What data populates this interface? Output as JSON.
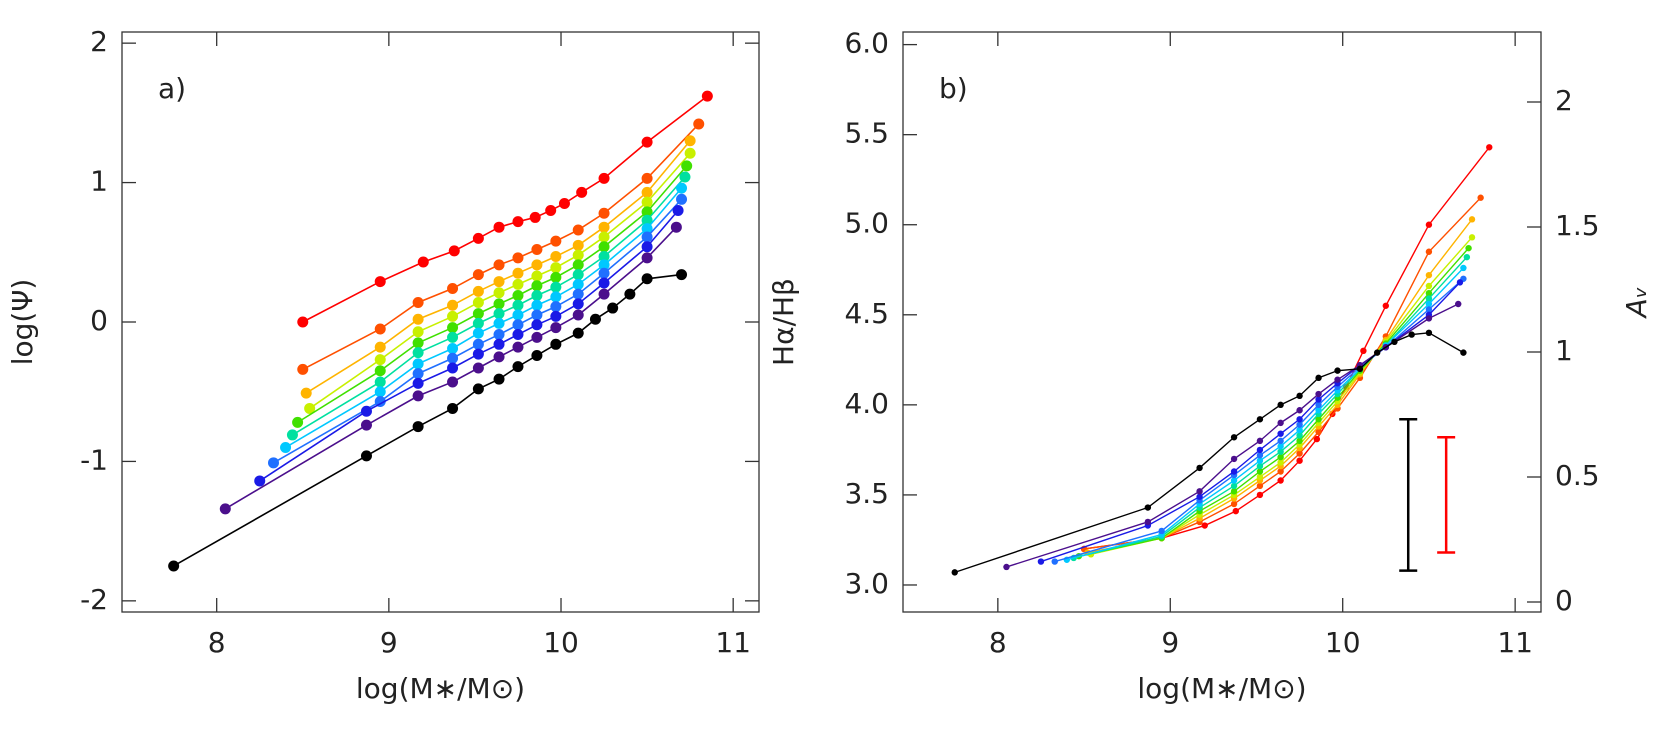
{
  "chart_data": [
    {
      "type": "line",
      "label": "a)",
      "xlabel": "log(M∗/M⊙)",
      "ylabel": "log(Ψ)",
      "xlim": [
        7.45,
        11.15
      ],
      "ylim": [
        -2.08,
        2.08
      ],
      "xticks": [
        8,
        9,
        10,
        11
      ],
      "yticks": [
        -2,
        -1,
        0,
        1,
        2
      ],
      "series": [
        {
          "color": "#ff0000",
          "x": [
            8.5,
            8.95,
            9.2,
            9.38,
            9.52,
            9.64,
            9.75,
            9.85,
            9.94,
            10.02,
            10.12,
            10.25,
            10.5,
            10.85
          ],
          "values": [
            0,
            0.29,
            0.43,
            0.51,
            0.6,
            0.68,
            0.72,
            0.75,
            0.8,
            0.85,
            0.93,
            1.03,
            1.29,
            1.62
          ]
        },
        {
          "color": "#ff5000",
          "x": [
            8.5,
            8.95,
            9.17,
            9.37,
            9.52,
            9.64,
            9.75,
            9.86,
            9.97,
            10.1,
            10.25,
            10.5,
            10.8
          ],
          "values": [
            -0.34,
            -0.05,
            0.14,
            0.24,
            0.34,
            0.41,
            0.46,
            0.52,
            0.58,
            0.66,
            0.78,
            1.03,
            1.42
          ]
        },
        {
          "color": "#ffb400",
          "x": [
            8.52,
            8.95,
            9.17,
            9.37,
            9.52,
            9.64,
            9.75,
            9.86,
            9.97,
            10.1,
            10.25,
            10.5,
            10.75
          ],
          "values": [
            -0.51,
            -0.18,
            0.02,
            0.12,
            0.22,
            0.29,
            0.35,
            0.41,
            0.47,
            0.55,
            0.68,
            0.93,
            1.3
          ]
        },
        {
          "color": "#c8f000",
          "x": [
            8.54,
            8.95,
            9.17,
            9.37,
            9.52,
            9.64,
            9.75,
            9.86,
            9.97,
            10.1,
            10.25,
            10.5,
            10.75
          ],
          "values": [
            -0.62,
            -0.27,
            -0.07,
            0.04,
            0.14,
            0.21,
            0.27,
            0.33,
            0.39,
            0.48,
            0.61,
            0.86,
            1.21
          ]
        },
        {
          "color": "#40e000",
          "x": [
            8.47,
            8.95,
            9.17,
            9.37,
            9.52,
            9.64,
            9.75,
            9.86,
            9.97,
            10.1,
            10.25,
            10.5,
            10.73
          ],
          "values": [
            -0.72,
            -0.35,
            -0.15,
            -0.04,
            0.06,
            0.13,
            0.19,
            0.26,
            0.32,
            0.41,
            0.54,
            0.79,
            1.12
          ]
        },
        {
          "color": "#00e0a0",
          "x": [
            8.44,
            8.95,
            9.17,
            9.37,
            9.52,
            9.64,
            9.75,
            9.86,
            9.97,
            10.1,
            10.25,
            10.5,
            10.72
          ],
          "values": [
            -0.81,
            -0.43,
            -0.22,
            -0.11,
            -0.01,
            0.06,
            0.12,
            0.19,
            0.25,
            0.34,
            0.47,
            0.73,
            1.04
          ]
        },
        {
          "color": "#00c8ff",
          "x": [
            8.4,
            8.95,
            9.17,
            9.37,
            9.52,
            9.64,
            9.75,
            9.86,
            9.97,
            10.1,
            10.25,
            10.5,
            10.7
          ],
          "values": [
            -0.9,
            -0.5,
            -0.3,
            -0.19,
            -0.08,
            -0.01,
            0.05,
            0.12,
            0.18,
            0.27,
            0.41,
            0.67,
            0.96
          ]
        },
        {
          "color": "#2070ff",
          "x": [
            8.33,
            8.95,
            9.17,
            9.37,
            9.52,
            9.64,
            9.75,
            9.86,
            9.97,
            10.1,
            10.25,
            10.5,
            10.7
          ],
          "values": [
            -1.01,
            -0.57,
            -0.37,
            -0.26,
            -0.16,
            -0.09,
            -0.02,
            0.05,
            0.11,
            0.2,
            0.35,
            0.61,
            0.88
          ]
        },
        {
          "color": "#1a1ae6",
          "x": [
            8.25,
            8.87,
            9.17,
            9.37,
            9.52,
            9.64,
            9.75,
            9.86,
            9.97,
            10.1,
            10.25,
            10.5,
            10.68
          ],
          "values": [
            -1.14,
            -0.64,
            -0.44,
            -0.33,
            -0.23,
            -0.16,
            -0.09,
            -0.02,
            0.04,
            0.13,
            0.28,
            0.54,
            0.8
          ]
        },
        {
          "color": "#4b0f8c",
          "x": [
            8.05,
            8.87,
            9.17,
            9.37,
            9.52,
            9.64,
            9.75,
            9.86,
            9.97,
            10.1,
            10.25,
            10.5,
            10.67
          ],
          "values": [
            -1.34,
            -0.74,
            -0.53,
            -0.43,
            -0.33,
            -0.25,
            -0.18,
            -0.11,
            -0.04,
            0.05,
            0.2,
            0.46,
            0.68
          ]
        },
        {
          "color": "#000000",
          "x": [
            7.75,
            8.87,
            9.17,
            9.37,
            9.52,
            9.64,
            9.75,
            9.86,
            9.97,
            10.1,
            10.2,
            10.3,
            10.4,
            10.5,
            10.7
          ],
          "values": [
            -1.75,
            -0.96,
            -0.75,
            -0.62,
            -0.48,
            -0.41,
            -0.32,
            -0.24,
            -0.16,
            -0.08,
            0.02,
            0.1,
            0.2,
            0.31,
            0.34
          ]
        }
      ]
    },
    {
      "type": "line",
      "label": "b)",
      "xlabel": "log(M∗/M⊙)",
      "ylabel": "Hα/Hβ",
      "y2label": "Aᵥ",
      "xlim": [
        7.45,
        11.15
      ],
      "ylim": [
        2.85,
        6.07
      ],
      "y2lim": [
        -0.04,
        2.28
      ],
      "xticks": [
        8,
        9,
        10,
        11
      ],
      "yticks": [
        {
          "value": 3,
          "label": "3.0"
        },
        3.5,
        {
          "value": 4,
          "label": "4.0"
        },
        4.5,
        {
          "value": 5,
          "label": "5.0"
        },
        5.5,
        {
          "value": 6,
          "label": "6.0"
        }
      ],
      "y2ticks": [
        0,
        0.5,
        1,
        1.5,
        2
      ],
      "series": [
        {
          "color": "#ff0000",
          "x": [
            8.5,
            8.95,
            9.2,
            9.38,
            9.52,
            9.64,
            9.75,
            9.85,
            9.94,
            10.02,
            10.12,
            10.25,
            10.5,
            10.85
          ],
          "values": [
            3.2,
            3.26,
            3.33,
            3.41,
            3.5,
            3.58,
            3.69,
            3.81,
            3.95,
            4.1,
            4.3,
            4.55,
            5.0,
            5.43
          ]
        },
        {
          "color": "#ff5000",
          "x": [
            8.5,
            8.95,
            9.17,
            9.37,
            9.52,
            9.64,
            9.75,
            9.86,
            9.97,
            10.1,
            10.25,
            10.5,
            10.8
          ],
          "values": [
            3.2,
            3.26,
            3.35,
            3.45,
            3.55,
            3.63,
            3.73,
            3.85,
            3.98,
            4.15,
            4.38,
            4.85,
            5.15
          ]
        },
        {
          "color": "#ffb400",
          "x": [
            8.52,
            8.95,
            9.17,
            9.37,
            9.52,
            9.64,
            9.75,
            9.86,
            9.97,
            10.1,
            10.25,
            10.5,
            10.75
          ],
          "values": [
            3.18,
            3.26,
            3.37,
            3.48,
            3.58,
            3.66,
            3.76,
            3.88,
            4.0,
            4.17,
            4.36,
            4.72,
            5.03
          ]
        },
        {
          "color": "#c8f000",
          "x": [
            8.54,
            8.95,
            9.17,
            9.37,
            9.52,
            9.64,
            9.75,
            9.86,
            9.97,
            10.1,
            10.25,
            10.5,
            10.75
          ],
          "values": [
            3.17,
            3.26,
            3.39,
            3.5,
            3.6,
            3.68,
            3.78,
            3.9,
            4.02,
            4.18,
            4.35,
            4.66,
            4.93
          ]
        },
        {
          "color": "#40e000",
          "x": [
            8.47,
            8.95,
            9.17,
            9.37,
            9.52,
            9.64,
            9.75,
            9.86,
            9.97,
            10.1,
            10.25,
            10.5,
            10.73
          ],
          "values": [
            3.16,
            3.26,
            3.41,
            3.52,
            3.63,
            3.71,
            3.8,
            3.92,
            4.04,
            4.19,
            4.34,
            4.62,
            4.87
          ]
        },
        {
          "color": "#00e0a0",
          "x": [
            8.44,
            8.95,
            9.17,
            9.37,
            9.52,
            9.64,
            9.75,
            9.86,
            9.97,
            10.1,
            10.25,
            10.5,
            10.72
          ],
          "values": [
            3.15,
            3.27,
            3.43,
            3.55,
            3.66,
            3.74,
            3.83,
            3.95,
            4.06,
            4.2,
            4.33,
            4.59,
            4.82
          ]
        },
        {
          "color": "#00c8ff",
          "x": [
            8.4,
            8.95,
            9.17,
            9.37,
            9.52,
            9.64,
            9.75,
            9.86,
            9.97,
            10.1,
            10.25,
            10.5,
            10.7
          ],
          "values": [
            3.14,
            3.28,
            3.45,
            3.58,
            3.69,
            3.77,
            3.86,
            3.97,
            4.08,
            4.2,
            4.33,
            4.56,
            4.76
          ]
        },
        {
          "color": "#2070ff",
          "x": [
            8.33,
            8.95,
            9.17,
            9.37,
            9.52,
            9.64,
            9.75,
            9.86,
            9.97,
            10.1,
            10.25,
            10.5,
            10.7
          ],
          "values": [
            3.13,
            3.3,
            3.47,
            3.61,
            3.72,
            3.8,
            3.89,
            4.0,
            4.1,
            4.21,
            4.32,
            4.53,
            4.7
          ]
        },
        {
          "color": "#1a1ae6",
          "x": [
            8.25,
            8.87,
            9.17,
            9.37,
            9.52,
            9.64,
            9.75,
            9.86,
            9.97,
            10.1,
            10.25,
            10.5,
            10.68
          ],
          "values": [
            3.13,
            3.33,
            3.49,
            3.63,
            3.75,
            3.84,
            3.92,
            4.03,
            4.12,
            4.22,
            4.32,
            4.5,
            4.68
          ]
        },
        {
          "color": "#4b0f8c",
          "x": [
            8.05,
            8.87,
            9.17,
            9.37,
            9.52,
            9.64,
            9.75,
            9.86,
            9.97,
            10.1,
            10.25,
            10.5,
            10.67
          ],
          "values": [
            3.1,
            3.35,
            3.52,
            3.7,
            3.8,
            3.9,
            3.97,
            4.06,
            4.14,
            4.22,
            4.32,
            4.48,
            4.56
          ]
        },
        {
          "color": "#000000",
          "x": [
            7.75,
            8.87,
            9.17,
            9.37,
            9.52,
            9.64,
            9.75,
            9.86,
            9.97,
            10.1,
            10.2,
            10.3,
            10.4,
            10.5,
            10.7
          ],
          "values": [
            3.07,
            3.43,
            3.65,
            3.82,
            3.92,
            4.0,
            4.05,
            4.15,
            4.19,
            4.2,
            4.29,
            4.35,
            4.39,
            4.4,
            4.29
          ]
        }
      ],
      "error_bars": [
        {
          "color": "#000000",
          "x": 10.38,
          "value": 3.5,
          "error": 0.42
        },
        {
          "color": "#ff0000",
          "x": 10.6,
          "value": 3.5,
          "error": 0.32
        }
      ]
    }
  ]
}
